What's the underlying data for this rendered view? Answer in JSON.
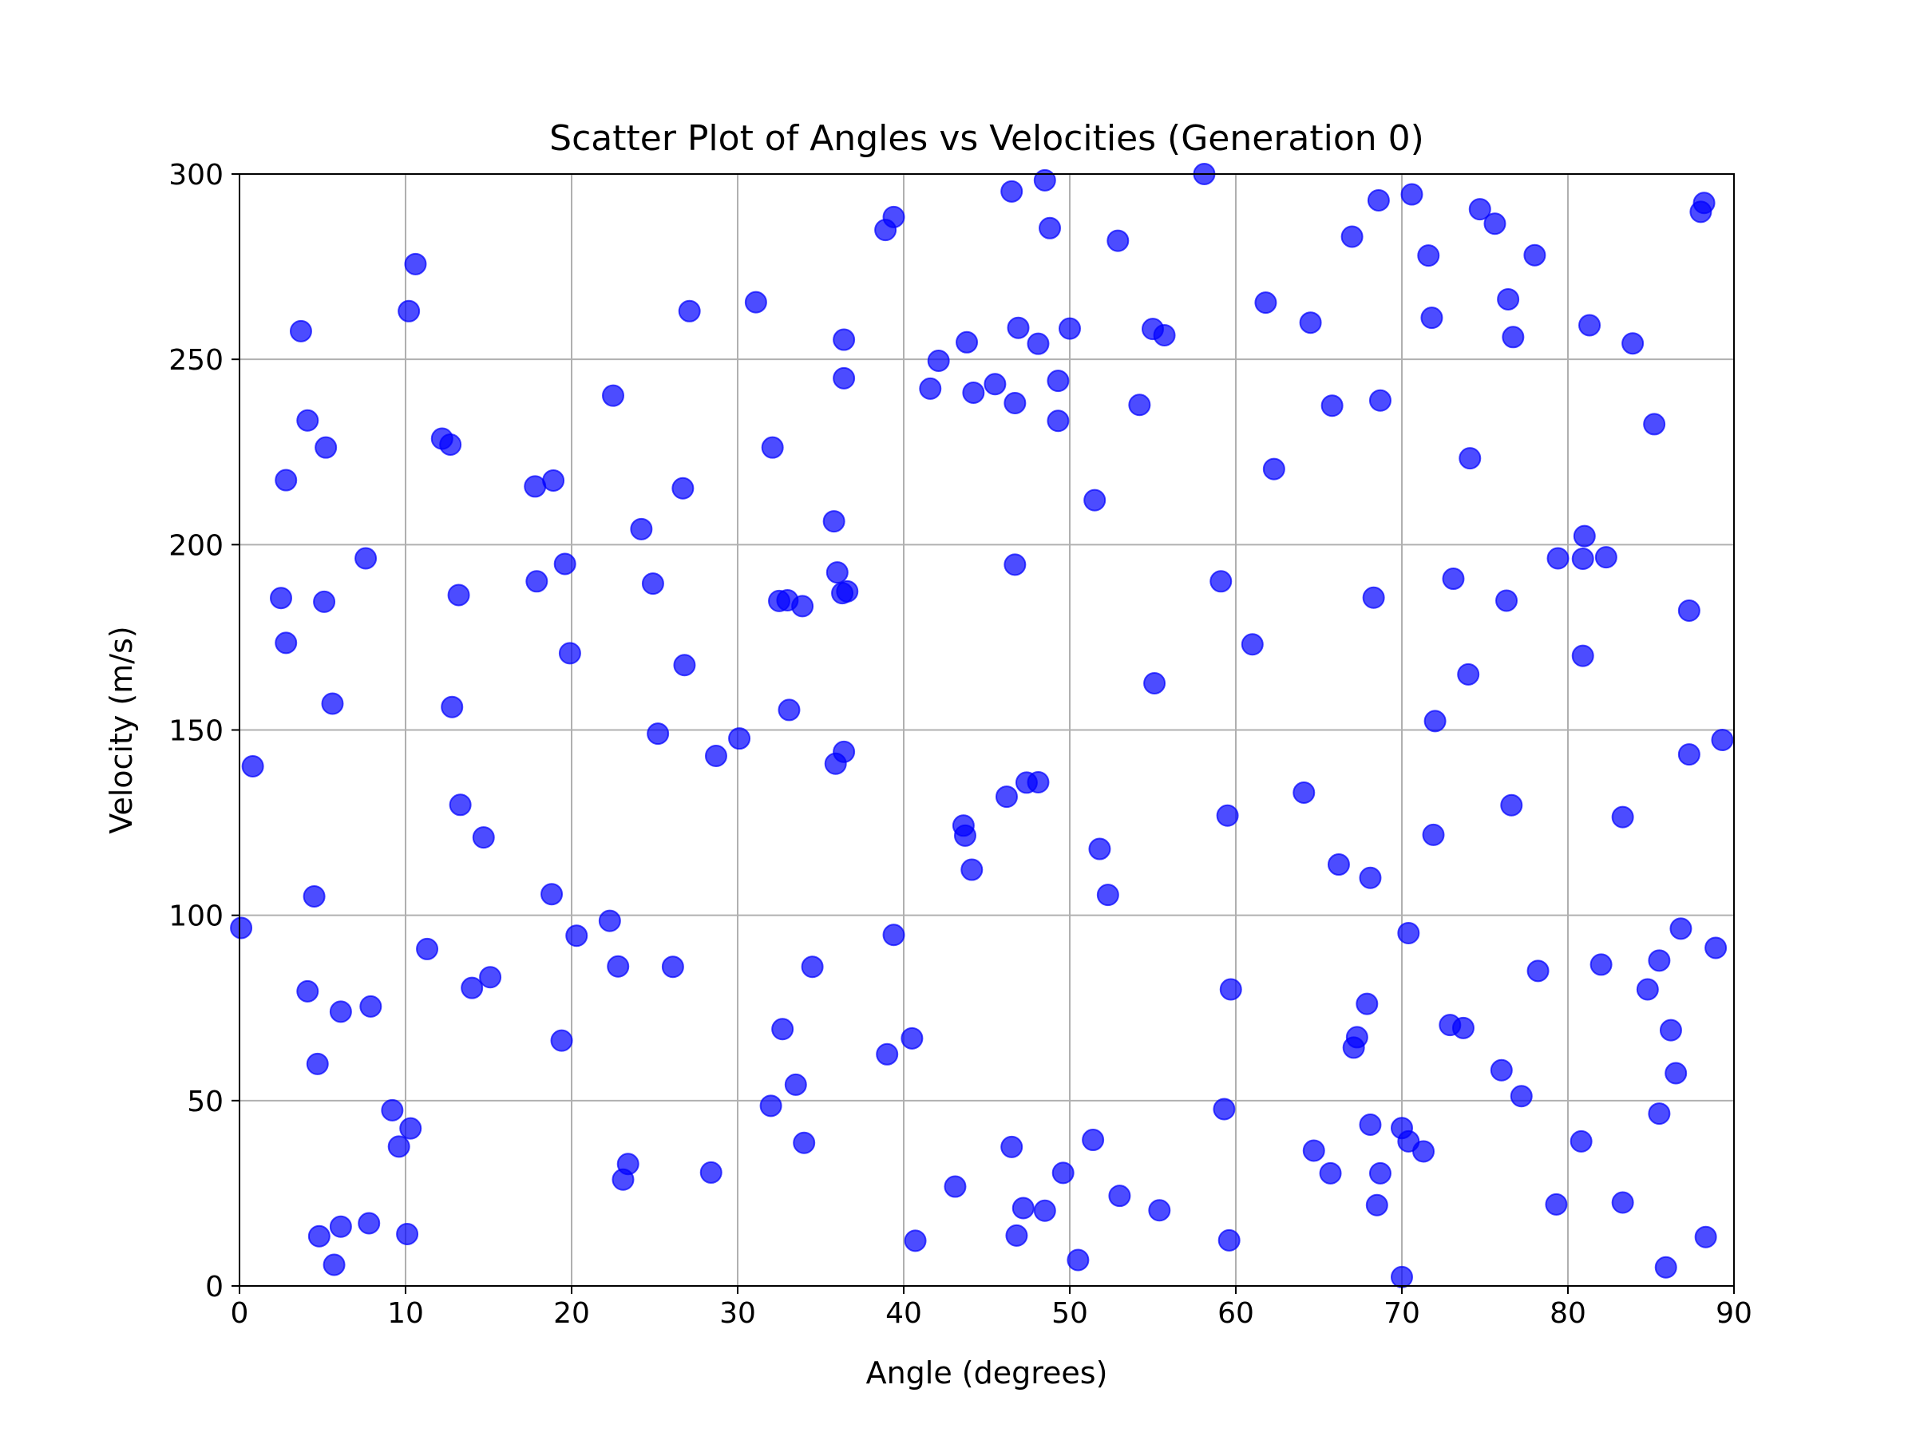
{
  "chart_data": {
    "type": "scatter",
    "title": "Scatter Plot of Angles vs Velocities (Generation 0)",
    "xlabel": "Angle (degrees)",
    "ylabel": "Velocity (m/s)",
    "xlim": [
      0,
      90
    ],
    "ylim": [
      0,
      300
    ],
    "xticks": [
      0,
      10,
      20,
      30,
      40,
      50,
      60,
      70,
      80,
      90
    ],
    "yticks": [
      0,
      50,
      100,
      150,
      200,
      250,
      300
    ],
    "grid": true,
    "legend": "none",
    "marker_color": "#0000ff",
    "marker_alpha": 0.7,
    "points": [
      [
        0.1,
        96.6
      ],
      [
        0.8,
        140.2
      ],
      [
        2.5,
        185.6
      ],
      [
        2.8,
        217.4
      ],
      [
        2.8,
        173.5
      ],
      [
        3.7,
        257.6
      ],
      [
        4.1,
        233.5
      ],
      [
        4.1,
        79.5
      ],
      [
        4.5,
        105.1
      ],
      [
        4.7,
        59.9
      ],
      [
        4.8,
        13.4
      ],
      [
        5.1,
        184.6
      ],
      [
        5.2,
        226.2
      ],
      [
        5.6,
        157.1
      ],
      [
        5.7,
        5.7
      ],
      [
        6.1,
        74.0
      ],
      [
        6.1,
        16.0
      ],
      [
        7.6,
        196.3
      ],
      [
        7.8,
        16.9
      ],
      [
        7.9,
        75.4
      ],
      [
        9.2,
        47.4
      ],
      [
        9.6,
        37.6
      ],
      [
        10.1,
        14.0
      ],
      [
        10.2,
        263.0
      ],
      [
        10.3,
        42.5
      ],
      [
        10.6,
        275.7
      ],
      [
        11.3,
        90.9
      ],
      [
        12.2,
        228.6
      ],
      [
        12.7,
        227.0
      ],
      [
        12.8,
        156.2
      ],
      [
        13.2,
        186.4
      ],
      [
        13.3,
        129.8
      ],
      [
        14.0,
        80.4
      ],
      [
        14.7,
        121.0
      ],
      [
        15.1,
        83.3
      ],
      [
        17.8,
        215.7
      ],
      [
        17.9,
        190.1
      ],
      [
        18.8,
        105.7
      ],
      [
        18.9,
        217.3
      ],
      [
        19.4,
        66.2
      ],
      [
        19.6,
        194.8
      ],
      [
        19.9,
        170.7
      ],
      [
        20.3,
        94.5
      ],
      [
        22.3,
        98.5
      ],
      [
        22.5,
        240.2
      ],
      [
        22.8,
        86.2
      ],
      [
        23.1,
        28.7
      ],
      [
        23.4,
        32.9
      ],
      [
        24.2,
        204.2
      ],
      [
        24.9,
        189.5
      ],
      [
        25.2,
        149.0
      ],
      [
        26.1,
        86.1
      ],
      [
        26.7,
        215.2
      ],
      [
        26.8,
        167.5
      ],
      [
        27.1,
        263.0
      ],
      [
        28.4,
        30.6
      ],
      [
        28.7,
        143.0
      ],
      [
        30.1,
        147.7
      ],
      [
        31.1,
        265.4
      ],
      [
        32.0,
        48.6
      ],
      [
        32.1,
        226.2
      ],
      [
        32.5,
        184.8
      ],
      [
        32.7,
        69.3
      ],
      [
        33.0,
        185.0
      ],
      [
        33.1,
        155.4
      ],
      [
        33.5,
        54.3
      ],
      [
        33.9,
        183.4
      ],
      [
        34.0,
        38.6
      ],
      [
        34.5,
        86.1
      ],
      [
        35.8,
        206.3
      ],
      [
        35.9,
        140.9
      ],
      [
        36.0,
        192.5
      ],
      [
        36.3,
        186.9
      ],
      [
        36.4,
        255.3
      ],
      [
        36.4,
        244.9
      ],
      [
        36.4,
        144.1
      ],
      [
        36.6,
        187.4
      ],
      [
        38.9,
        284.9
      ],
      [
        39.0,
        62.5
      ],
      [
        39.4,
        94.7
      ],
      [
        39.4,
        288.4
      ],
      [
        40.5,
        66.8
      ],
      [
        40.7,
        12.2
      ],
      [
        41.6,
        242.1
      ],
      [
        42.1,
        249.6
      ],
      [
        43.1,
        26.8
      ],
      [
        43.6,
        124.2
      ],
      [
        43.7,
        121.5
      ],
      [
        43.8,
        254.6
      ],
      [
        44.1,
        112.3
      ],
      [
        44.2,
        241.0
      ],
      [
        45.5,
        243.3
      ],
      [
        46.2,
        132.0
      ],
      [
        46.5,
        295.3
      ],
      [
        46.5,
        37.5
      ],
      [
        46.7,
        238.2
      ],
      [
        46.7,
        194.6
      ],
      [
        46.8,
        13.6
      ],
      [
        46.9,
        258.5
      ],
      [
        47.2,
        21.0
      ],
      [
        47.4,
        135.8
      ],
      [
        48.1,
        254.2
      ],
      [
        48.1,
        135.9
      ],
      [
        48.5,
        298.3
      ],
      [
        48.5,
        20.3
      ],
      [
        48.8,
        285.4
      ],
      [
        49.3,
        244.2
      ],
      [
        49.3,
        233.4
      ],
      [
        49.6,
        30.5
      ],
      [
        50.0,
        258.3
      ],
      [
        50.5,
        7.0
      ],
      [
        51.4,
        39.4
      ],
      [
        51.5,
        212.0
      ],
      [
        51.8,
        117.9
      ],
      [
        52.3,
        105.5
      ],
      [
        52.9,
        282.0
      ],
      [
        53.0,
        24.3
      ],
      [
        54.2,
        237.7
      ],
      [
        55.0,
        258.2
      ],
      [
        55.1,
        162.6
      ],
      [
        55.4,
        20.4
      ],
      [
        55.7,
        256.5
      ],
      [
        58.1,
        300.0
      ],
      [
        59.1,
        190.1
      ],
      [
        59.3,
        47.7
      ],
      [
        59.5,
        126.9
      ],
      [
        59.6,
        12.3
      ],
      [
        59.7,
        80.0
      ],
      [
        61.0,
        173.1
      ],
      [
        61.8,
        265.3
      ],
      [
        62.3,
        220.4
      ],
      [
        64.1,
        133.1
      ],
      [
        64.5,
        259.9
      ],
      [
        64.7,
        36.5
      ],
      [
        65.7,
        30.4
      ],
      [
        65.8,
        237.5
      ],
      [
        66.2,
        113.7
      ],
      [
        67.0,
        283.1
      ],
      [
        67.1,
        64.3
      ],
      [
        67.3,
        67.1
      ],
      [
        67.9,
        76.1
      ],
      [
        68.1,
        110.1
      ],
      [
        68.1,
        43.5
      ],
      [
        68.3,
        185.7
      ],
      [
        68.5,
        21.8
      ],
      [
        68.6,
        292.9
      ],
      [
        68.7,
        238.9
      ],
      [
        68.7,
        30.4
      ],
      [
        70.0,
        2.4
      ],
      [
        70.0,
        42.6
      ],
      [
        70.4,
        95.2
      ],
      [
        70.4,
        39.0
      ],
      [
        70.6,
        294.5
      ],
      [
        71.3,
        36.3
      ],
      [
        71.6,
        278.0
      ],
      [
        71.8,
        261.2
      ],
      [
        71.9,
        121.7
      ],
      [
        72.0,
        152.4
      ],
      [
        72.9,
        70.4
      ],
      [
        73.1,
        190.8
      ],
      [
        73.7,
        69.6
      ],
      [
        74.0,
        165.0
      ],
      [
        74.1,
        223.3
      ],
      [
        74.7,
        290.5
      ],
      [
        75.6,
        286.6
      ],
      [
        76.0,
        58.2
      ],
      [
        76.3,
        184.9
      ],
      [
        76.4,
        266.2
      ],
      [
        76.6,
        129.7
      ],
      [
        76.7,
        256.0
      ],
      [
        77.2,
        51.2
      ],
      [
        78.0,
        278.1
      ],
      [
        78.2,
        85.0
      ],
      [
        79.3,
        22.0
      ],
      [
        79.4,
        196.3
      ],
      [
        80.8,
        39.0
      ],
      [
        80.9,
        196.2
      ],
      [
        80.9,
        170.0
      ],
      [
        81.0,
        202.3
      ],
      [
        81.3,
        259.2
      ],
      [
        82.0,
        86.7
      ],
      [
        82.3,
        196.6
      ],
      [
        83.3,
        22.5
      ],
      [
        83.3,
        126.5
      ],
      [
        83.9,
        254.3
      ],
      [
        84.8,
        80.0
      ],
      [
        85.2,
        232.5
      ],
      [
        85.5,
        87.8
      ],
      [
        85.5,
        46.5
      ],
      [
        85.9,
        5.0
      ],
      [
        86.2,
        69.0
      ],
      [
        86.5,
        57.4
      ],
      [
        86.8,
        96.4
      ],
      [
        87.3,
        182.2
      ],
      [
        87.3,
        143.4
      ],
      [
        88.0,
        289.8
      ],
      [
        88.2,
        292.2
      ],
      [
        88.3,
        13.2
      ],
      [
        88.9,
        91.2
      ],
      [
        89.3,
        147.3
      ]
    ]
  }
}
